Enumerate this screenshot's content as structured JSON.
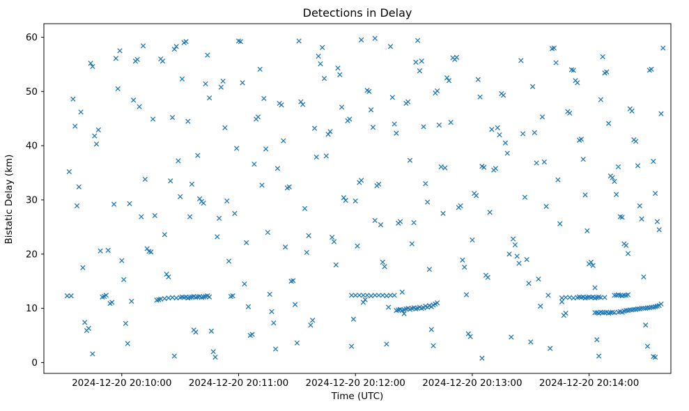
{
  "chart_data": {
    "type": "scatter",
    "title": "Detections in Delay",
    "xlabel": "Time (UTC)",
    "ylabel": "Bistatic Delay (km)",
    "marker": "x",
    "marker_color": "#1f77b4",
    "grid": false,
    "x_unit": "seconds since 2024-12-20 20:09:20 UTC",
    "xlim": [
      0,
      322
    ],
    "ylim": [
      -2,
      62.5
    ],
    "x_ticks": [
      {
        "value": 40,
        "label": "2024-12-20 20:10:00"
      },
      {
        "value": 100,
        "label": "2024-12-20 20:11:00"
      },
      {
        "value": 160,
        "label": "2024-12-20 20:12:00"
      },
      {
        "value": 220,
        "label": "2024-12-20 20:13:00"
      },
      {
        "value": 280,
        "label": "2024-12-20 20:14:00"
      }
    ],
    "y_ticks": [
      0,
      10,
      20,
      30,
      40,
      50,
      60
    ],
    "points": [
      [
        12,
        12.3
      ],
      [
        14,
        12.3
      ],
      [
        13,
        35.2
      ],
      [
        15,
        48.6
      ],
      [
        16,
        43.6
      ],
      [
        17,
        28.9
      ],
      [
        18,
        32.4
      ],
      [
        19,
        46.2
      ],
      [
        20,
        17.5
      ],
      [
        21,
        7.4
      ],
      [
        22,
        5.9
      ],
      [
        23,
        6.3
      ],
      [
        24,
        55.2
      ],
      [
        25,
        54.6
      ],
      [
        25,
        1.6
      ],
      [
        26,
        41.8
      ],
      [
        27,
        40.3
      ],
      [
        28,
        42.9
      ],
      [
        29,
        20.6
      ],
      [
        30,
        12.1
      ],
      [
        31,
        12.2
      ],
      [
        32,
        12.4
      ],
      [
        33,
        20.7
      ],
      [
        34,
        10.9
      ],
      [
        35,
        11.1
      ],
      [
        36,
        29.2
      ],
      [
        37,
        56.1
      ],
      [
        38,
        50.5
      ],
      [
        39,
        57.5
      ],
      [
        40,
        18.8
      ],
      [
        41,
        15.3
      ],
      [
        42,
        7.2
      ],
      [
        43,
        3.5
      ],
      [
        44,
        29.3
      ],
      [
        45,
        11.3
      ],
      [
        46,
        48.4
      ],
      [
        47,
        55.6
      ],
      [
        48,
        55.9
      ],
      [
        49,
        47.2
      ],
      [
        50,
        26.9
      ],
      [
        51,
        58.4
      ],
      [
        52,
        33.8
      ],
      [
        53,
        21.0
      ],
      [
        54,
        20.5
      ],
      [
        55,
        20.4
      ],
      [
        56,
        44.9
      ],
      [
        57,
        27.1
      ],
      [
        58,
        11.5
      ],
      [
        59,
        11.6
      ],
      [
        60,
        56.0
      ],
      [
        61,
        55.6
      ],
      [
        62,
        23.6
      ],
      [
        63,
        16.3
      ],
      [
        64,
        15.8
      ],
      [
        65,
        33.5
      ],
      [
        66,
        45.2
      ],
      [
        67,
        1.2
      ],
      [
        67,
        57.8
      ],
      [
        68,
        58.3
      ],
      [
        69,
        37.2
      ],
      [
        70,
        30.6
      ],
      [
        60,
        11.7
      ],
      [
        62,
        11.8
      ],
      [
        64,
        11.9
      ],
      [
        66,
        12.0
      ],
      [
        68,
        11.9
      ],
      [
        70,
        12.0
      ],
      [
        71,
        12.1
      ],
      [
        72,
        12.0
      ],
      [
        73,
        12.1
      ],
      [
        74,
        11.9
      ],
      [
        75,
        12.0
      ],
      [
        76,
        12.1
      ],
      [
        77,
        12.2
      ],
      [
        78,
        12.0
      ],
      [
        79,
        12.1
      ],
      [
        80,
        12.2
      ],
      [
        81,
        12.0
      ],
      [
        82,
        12.1
      ],
      [
        83,
        12.2
      ],
      [
        84,
        12.3
      ],
      [
        85,
        12.1
      ],
      [
        71,
        52.3
      ],
      [
        72,
        59.0
      ],
      [
        73,
        59.2
      ],
      [
        74,
        44.5
      ],
      [
        75,
        26.9
      ],
      [
        76,
        32.9
      ],
      [
        77,
        6.0
      ],
      [
        78,
        5.6
      ],
      [
        79,
        38.2
      ],
      [
        80,
        30.2
      ],
      [
        81,
        29.7
      ],
      [
        82,
        29.4
      ],
      [
        83,
        51.4
      ],
      [
        84,
        56.7
      ],
      [
        85,
        48.8
      ],
      [
        86,
        5.8
      ],
      [
        87,
        2.0
      ],
      [
        88,
        1.0
      ],
      [
        89,
        23.2
      ],
      [
        90,
        26.6
      ],
      [
        91,
        50.8
      ],
      [
        92,
        51.9
      ],
      [
        93,
        43.3
      ],
      [
        94,
        29.8
      ],
      [
        95,
        18.7
      ],
      [
        96,
        12.2
      ],
      [
        97,
        12.3
      ],
      [
        98,
        27.5
      ],
      [
        99,
        39.5
      ],
      [
        100,
        59.3
      ],
      [
        101,
        59.2
      ],
      [
        102,
        51.6
      ],
      [
        103,
        14.5
      ],
      [
        104,
        22.1
      ],
      [
        105,
        10.3
      ],
      [
        106,
        5.0
      ],
      [
        107,
        5.2
      ],
      [
        108,
        36.6
      ],
      [
        109,
        44.9
      ],
      [
        110,
        45.3
      ],
      [
        111,
        54.1
      ],
      [
        112,
        32.7
      ],
      [
        113,
        48.7
      ],
      [
        114,
        39.4
      ],
      [
        115,
        24.0
      ],
      [
        116,
        12.6
      ],
      [
        117,
        9.4
      ],
      [
        118,
        7.3
      ],
      [
        119,
        2.5
      ],
      [
        120,
        35.8
      ],
      [
        121,
        47.8
      ],
      [
        122,
        47.5
      ],
      [
        123,
        40.9
      ],
      [
        124,
        21.3
      ],
      [
        125,
        32.2
      ],
      [
        126,
        32.4
      ],
      [
        127,
        15.0
      ],
      [
        128,
        15.1
      ],
      [
        129,
        10.7
      ],
      [
        130,
        3.6
      ],
      [
        131,
        59.3
      ],
      [
        132,
        48.1
      ],
      [
        133,
        47.6
      ],
      [
        134,
        28.4
      ],
      [
        135,
        20.3
      ],
      [
        136,
        23.4
      ],
      [
        137,
        6.9
      ],
      [
        138,
        7.8
      ],
      [
        139,
        43.2
      ],
      [
        140,
        37.9
      ],
      [
        141,
        56.5
      ],
      [
        142,
        55.1
      ],
      [
        143,
        58.1
      ],
      [
        144,
        52.4
      ],
      [
        145,
        38.1
      ],
      [
        146,
        42.1
      ],
      [
        147,
        42.6
      ],
      [
        148,
        23.1
      ],
      [
        149,
        22.3
      ],
      [
        150,
        18.0
      ],
      [
        151,
        54.3
      ],
      [
        152,
        53.1
      ],
      [
        153,
        47.1
      ],
      [
        154,
        30.4
      ],
      [
        155,
        29.9
      ],
      [
        156,
        44.6
      ],
      [
        157,
        44.9
      ],
      [
        158,
        3.0
      ],
      [
        159,
        8.0
      ],
      [
        160,
        29.8
      ],
      [
        161,
        21.5
      ],
      [
        162,
        33.2
      ],
      [
        163,
        59.5
      ],
      [
        163,
        33.6
      ],
      [
        164,
        11.1
      ],
      [
        165,
        11.6
      ],
      [
        166,
        50.2
      ],
      [
        167,
        50.0
      ],
      [
        168,
        46.6
      ],
      [
        169,
        43.4
      ],
      [
        170,
        26.2
      ],
      [
        170,
        59.8
      ],
      [
        171,
        32.6
      ],
      [
        172,
        32.9
      ],
      [
        173,
        25.4
      ],
      [
        174,
        18.5
      ],
      [
        175,
        17.7
      ],
      [
        176,
        3.4
      ],
      [
        177,
        10.2
      ],
      [
        178,
        58.3
      ],
      [
        179,
        48.9
      ],
      [
        180,
        44.0
      ],
      [
        181,
        42.3
      ],
      [
        182,
        25.7
      ],
      [
        183,
        26.0
      ],
      [
        184,
        13.0
      ],
      [
        185,
        9.0
      ],
      [
        186,
        47.8
      ],
      [
        187,
        48.1
      ],
      [
        188,
        37.3
      ],
      [
        189,
        21.9
      ],
      [
        190,
        25.8
      ],
      [
        158,
        12.4
      ],
      [
        160,
        12.4
      ],
      [
        162,
        12.4
      ],
      [
        164,
        12.4
      ],
      [
        166,
        12.4
      ],
      [
        168,
        12.3
      ],
      [
        170,
        12.4
      ],
      [
        172,
        12.4
      ],
      [
        174,
        12.4
      ],
      [
        176,
        12.3
      ],
      [
        178,
        12.4
      ],
      [
        180,
        12.4
      ],
      [
        181,
        9.6
      ],
      [
        182,
        9.7
      ],
      [
        183,
        9.8
      ],
      [
        184,
        9.6
      ],
      [
        185,
        9.7
      ],
      [
        186,
        9.9
      ],
      [
        187,
        10.0
      ],
      [
        188,
        9.8
      ],
      [
        189,
        10.0
      ],
      [
        190,
        10.1
      ],
      [
        191,
        9.9
      ],
      [
        192,
        10.0
      ],
      [
        193,
        10.2
      ],
      [
        194,
        10.0
      ],
      [
        195,
        10.1
      ],
      [
        196,
        10.4
      ],
      [
        197,
        10.2
      ],
      [
        198,
        10.5
      ],
      [
        199,
        10.3
      ],
      [
        200,
        10.6
      ],
      [
        201,
        10.8
      ],
      [
        202,
        11.0
      ],
      [
        191,
        55.4
      ],
      [
        192,
        59.4
      ],
      [
        193,
        53.8
      ],
      [
        194,
        55.6
      ],
      [
        195,
        43.5
      ],
      [
        196,
        33.0
      ],
      [
        197,
        29.6
      ],
      [
        198,
        17.2
      ],
      [
        199,
        6.1
      ],
      [
        200,
        3.1
      ],
      [
        201,
        49.7
      ],
      [
        202,
        50.1
      ],
      [
        203,
        43.8
      ],
      [
        204,
        36.1
      ],
      [
        205,
        27.5
      ],
      [
        206,
        35.9
      ],
      [
        207,
        52.5
      ],
      [
        208,
        52.0
      ],
      [
        209,
        44.3
      ],
      [
        210,
        56.2
      ],
      [
        211,
        55.9
      ],
      [
        212,
        56.3
      ],
      [
        213,
        28.6
      ],
      [
        214,
        28.9
      ],
      [
        215,
        18.9
      ],
      [
        216,
        17.6
      ],
      [
        217,
        12.5
      ],
      [
        218,
        5.3
      ],
      [
        219,
        4.8
      ],
      [
        220,
        22.6
      ],
      [
        221,
        31.2
      ],
      [
        222,
        30.8
      ],
      [
        223,
        52.2
      ],
      [
        224,
        49.0
      ],
      [
        225,
        0.8
      ],
      [
        225,
        36.2
      ],
      [
        226,
        36.0
      ],
      [
        227,
        16.1
      ],
      [
        228,
        15.7
      ],
      [
        229,
        27.7
      ],
      [
        230,
        43.0
      ],
      [
        231,
        35.5
      ],
      [
        232,
        35.8
      ],
      [
        233,
        43.3
      ],
      [
        234,
        42.0
      ],
      [
        235,
        49.6
      ],
      [
        236,
        49.3
      ],
      [
        237,
        40.5
      ],
      [
        238,
        38.6
      ],
      [
        239,
        20.0
      ],
      [
        240,
        4.7
      ],
      [
        241,
        22.8
      ],
      [
        242,
        21.7
      ],
      [
        243,
        19.6
      ],
      [
        244,
        18.3
      ],
      [
        245,
        55.7
      ],
      [
        246,
        42.2
      ],
      [
        247,
        30.5
      ],
      [
        248,
        19.0
      ],
      [
        249,
        14.6
      ],
      [
        250,
        3.8
      ],
      [
        251,
        50.9
      ],
      [
        252,
        42.4
      ],
      [
        253,
        36.8
      ],
      [
        254,
        15.4
      ],
      [
        255,
        10.4
      ],
      [
        256,
        45.3
      ],
      [
        257,
        37.0
      ],
      [
        258,
        28.8
      ],
      [
        259,
        12.4
      ],
      [
        260,
        2.6
      ],
      [
        261,
        57.9
      ],
      [
        262,
        58.0
      ],
      [
        263,
        55.3
      ],
      [
        264,
        33.7
      ],
      [
        265,
        25.6
      ],
      [
        266,
        11.2
      ],
      [
        267,
        8.7
      ],
      [
        268,
        9.1
      ],
      [
        269,
        46.3
      ],
      [
        270,
        46.0
      ],
      [
        266,
        11.9
      ],
      [
        268,
        12.0
      ],
      [
        270,
        12.0
      ],
      [
        272,
        11.9
      ],
      [
        274,
        12.0
      ],
      [
        275,
        12.1
      ],
      [
        276,
        12.0
      ],
      [
        277,
        12.1
      ],
      [
        278,
        11.9
      ],
      [
        279,
        12.0
      ],
      [
        280,
        12.1
      ],
      [
        281,
        12.0
      ],
      [
        282,
        12.1
      ],
      [
        283,
        11.9
      ],
      [
        284,
        12.0
      ],
      [
        285,
        12.1
      ],
      [
        286,
        12.0
      ],
      [
        288,
        12.0
      ],
      [
        283,
        9.2
      ],
      [
        284,
        9.2
      ],
      [
        285,
        9.1
      ],
      [
        286,
        9.3
      ],
      [
        287,
        9.2
      ],
      [
        288,
        9.2
      ],
      [
        289,
        9.3
      ],
      [
        290,
        9.1
      ],
      [
        291,
        9.2
      ],
      [
        292,
        9.3
      ],
      [
        293,
        9.2
      ],
      [
        295,
        9.3
      ],
      [
        296,
        9.4
      ],
      [
        297,
        9.3
      ],
      [
        293,
        12.4
      ],
      [
        294,
        12.4
      ],
      [
        295,
        12.5
      ],
      [
        296,
        12.4
      ],
      [
        297,
        12.3
      ],
      [
        298,
        12.4
      ],
      [
        299,
        12.4
      ],
      [
        300,
        12.5
      ],
      [
        298,
        9.5
      ],
      [
        299,
        9.6
      ],
      [
        300,
        9.6
      ],
      [
        301,
        9.7
      ],
      [
        302,
        9.7
      ],
      [
        303,
        9.8
      ],
      [
        304,
        9.8
      ],
      [
        305,
        9.9
      ],
      [
        306,
        9.9
      ],
      [
        307,
        10.0
      ],
      [
        308,
        10.0
      ],
      [
        309,
        10.0
      ],
      [
        310,
        10.1
      ],
      [
        311,
        10.1
      ],
      [
        312,
        10.2
      ],
      [
        313,
        10.2
      ],
      [
        314,
        10.3
      ],
      [
        315,
        10.4
      ],
      [
        316,
        10.5
      ],
      [
        317,
        10.8
      ],
      [
        271,
        54.0
      ],
      [
        272,
        53.9
      ],
      [
        273,
        52.0
      ],
      [
        274,
        51.6
      ],
      [
        275,
        41.0
      ],
      [
        276,
        41.2
      ],
      [
        277,
        37.5
      ],
      [
        278,
        30.9
      ],
      [
        279,
        24.3
      ],
      [
        280,
        18.2
      ],
      [
        281,
        18.5
      ],
      [
        282,
        17.9
      ],
      [
        283,
        13.8
      ],
      [
        284,
        4.2
      ],
      [
        285,
        1.2
      ],
      [
        286,
        48.5
      ],
      [
        287,
        56.4
      ],
      [
        288,
        53.4
      ],
      [
        289,
        53.6
      ],
      [
        290,
        44.1
      ],
      [
        291,
        34.4
      ],
      [
        292,
        34.1
      ],
      [
        293,
        33.4
      ],
      [
        294,
        31.0
      ],
      [
        295,
        36.1
      ],
      [
        296,
        26.9
      ],
      [
        297,
        26.8
      ],
      [
        298,
        21.9
      ],
      [
        299,
        21.6
      ],
      [
        300,
        20.1
      ],
      [
        301,
        46.8
      ],
      [
        302,
        46.4
      ],
      [
        303,
        41.1
      ],
      [
        304,
        40.8
      ],
      [
        305,
        36.3
      ],
      [
        306,
        28.9
      ],
      [
        307,
        26.5
      ],
      [
        308,
        15.8
      ],
      [
        309,
        6.9
      ],
      [
        310,
        3.0
      ],
      [
        311,
        53.9
      ],
      [
        312,
        54.1
      ],
      [
        313,
        37.1
      ],
      [
        313,
        1.1
      ],
      [
        314,
        31.2
      ],
      [
        314,
        1.0
      ],
      [
        315,
        26.0
      ],
      [
        316,
        24.5
      ],
      [
        317,
        45.9
      ],
      [
        318,
        58.0
      ]
    ]
  }
}
